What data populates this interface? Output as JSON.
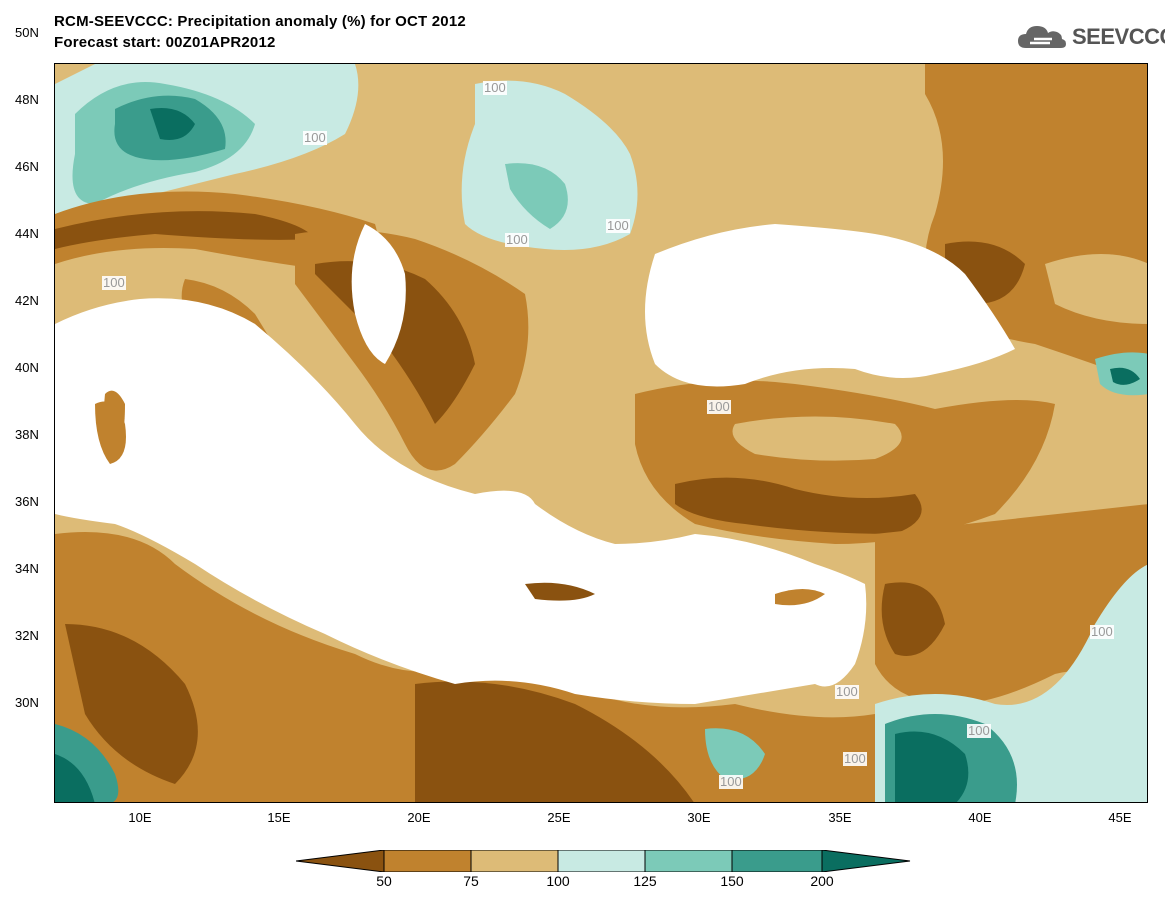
{
  "title": {
    "line1": "RCM-SEEVCCC: Precipitation anomaly (%) for OCT 2012",
    "line2": "Forecast start: 00Z01APR2012"
  },
  "logo": {
    "text": "SEEVCCC",
    "icon": "cloud-logo-icon"
  },
  "axes": {
    "y_labels": [
      "50N",
      "48N",
      "46N",
      "44N",
      "42N",
      "40N",
      "38N",
      "36N",
      "34N",
      "32N",
      "30N"
    ],
    "x_labels": [
      "10E",
      "15E",
      "20E",
      "25E",
      "30E",
      "35E",
      "40E",
      "45E"
    ]
  },
  "contour_labels": [
    "100",
    "100",
    "100",
    "100",
    "100",
    "100",
    "100",
    "100",
    "100",
    "100",
    "100"
  ],
  "colorbar": {
    "labels": [
      "50",
      "75",
      "100",
      "125",
      "150",
      "200"
    ],
    "colors": [
      "#8a5210",
      "#c0822e",
      "#ddbb77",
      "#c8eae3",
      "#7ccab8",
      "#3a9c8c",
      "#0a6e60"
    ]
  },
  "colors": {
    "dry_strong": "#8a5210",
    "dry": "#c0822e",
    "dry_light": "#ddbb77",
    "wet_light": "#c8eae3",
    "wet": "#7ccab8",
    "wet_strong": "#3a9c8c",
    "wet_extreme": "#0a6e60",
    "sea": "#ffffff"
  }
}
